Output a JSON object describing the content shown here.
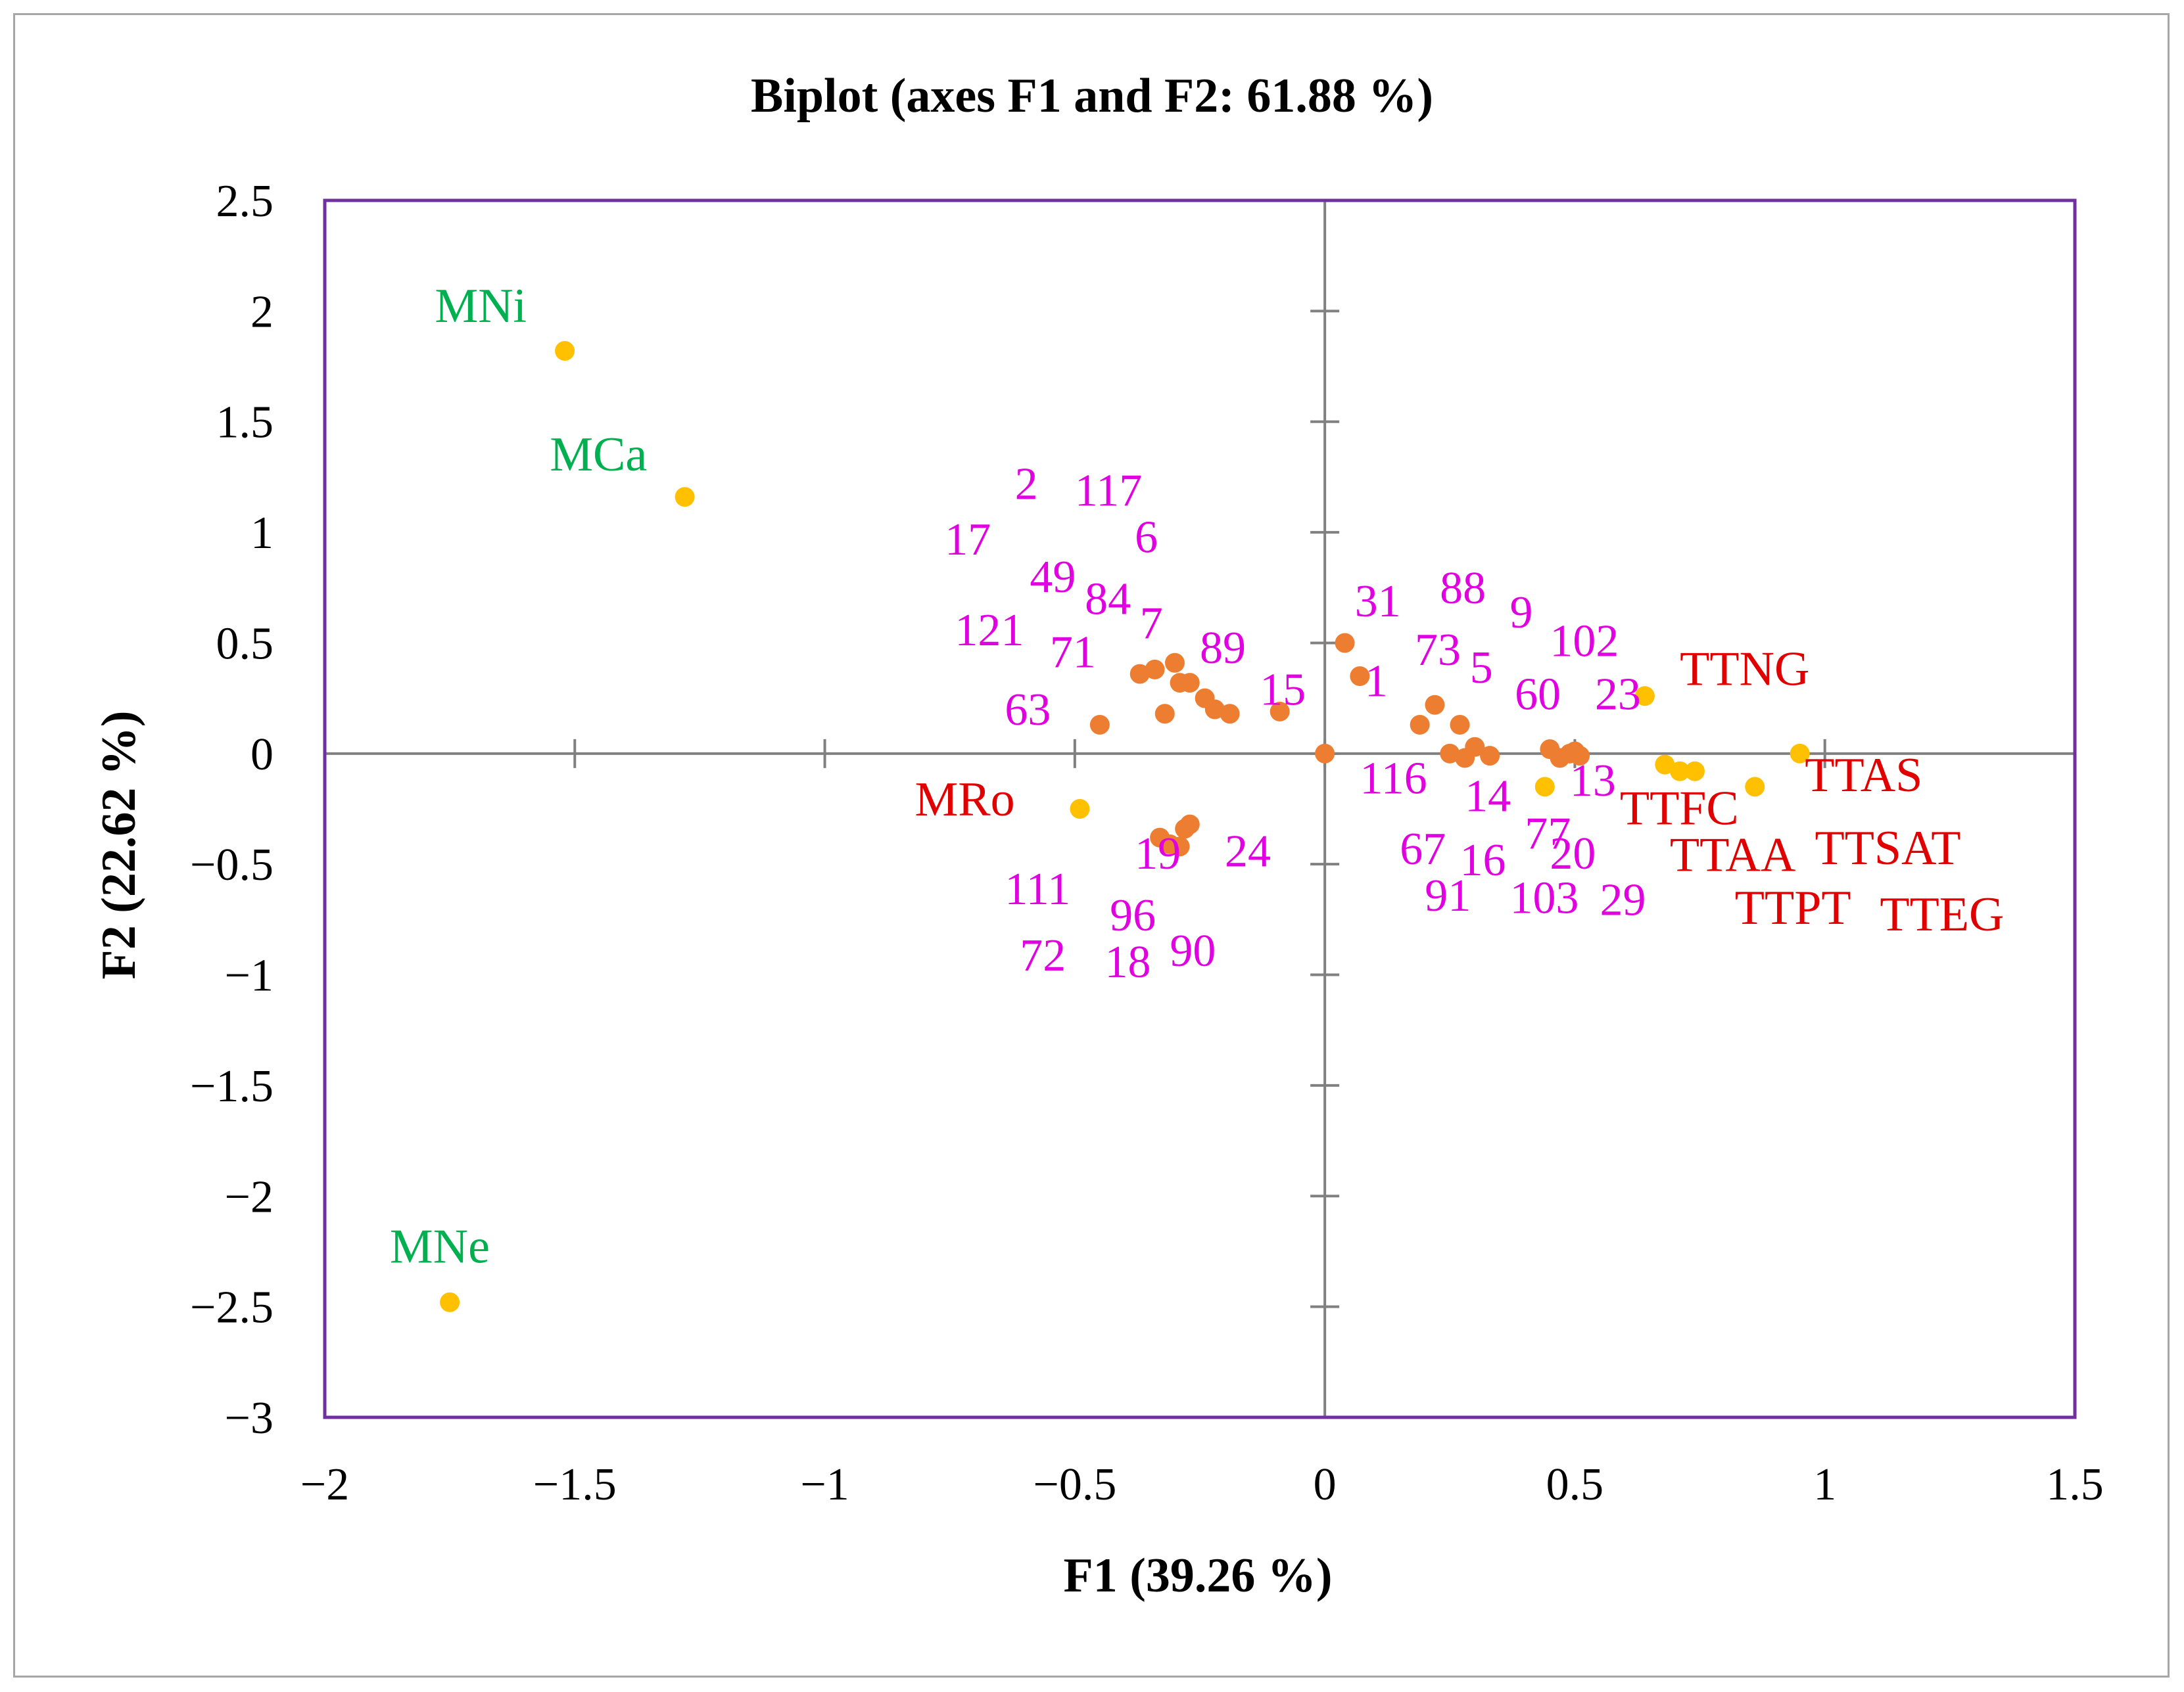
{
  "chart_data": {
    "type": "scatter",
    "title": "Biplot (axes F1 and F2: 61.88 %)",
    "xlabel": "F1 (39.26 %)",
    "ylabel": "F2 (22.62 %)",
    "xlim": [
      -2,
      1.5
    ],
    "ylim": [
      -3,
      2.5
    ],
    "x_ticks": [
      -2,
      -1.5,
      -1,
      -0.5,
      0,
      0.5,
      1,
      1.5
    ],
    "y_ticks": [
      2.5,
      2,
      1.5,
      1,
      0.5,
      0,
      -0.5,
      -1,
      -1.5,
      -2,
      -2.5,
      -3
    ],
    "x_tick_labels": [
      "−2",
      "−1.5",
      "−1",
      "−0.5",
      "0",
      "0.5",
      "1",
      "1.5"
    ],
    "y_tick_labels": [
      "2.5",
      "2",
      "1.5",
      "1",
      "0.5",
      "0",
      "−0.5",
      "−1",
      "−1.5",
      "−2",
      "−2.5",
      "−3"
    ],
    "colors": {
      "frame": "#7030a0",
      "axis": "#808080",
      "observation_point": "#ed7d31",
      "variable_point": "#ffc000",
      "observation_label": "#e000e0",
      "variable_label_green": "#00b050",
      "variable_label_red": "#e00000"
    },
    "variable_points": [
      {
        "name": "MNi",
        "x": -1.52,
        "y": 1.82,
        "color": "green"
      },
      {
        "name": "MCa",
        "x": -1.28,
        "y": 1.16,
        "color": "green"
      },
      {
        "name": "MNe",
        "x": -1.75,
        "y": -2.48,
        "color": "green"
      },
      {
        "name": "MRo",
        "x": -0.49,
        "y": -0.25,
        "color": "red"
      },
      {
        "name": "TTNG",
        "x": 0.64,
        "y": 0.26,
        "color": "red"
      },
      {
        "name": "TTAS",
        "x": 0.95,
        "y": 0.0,
        "color": "red"
      },
      {
        "name": "TTFC",
        "x": 0.68,
        "y": -0.05,
        "color": "red"
      },
      {
        "name": "TTAA",
        "x": 0.71,
        "y": -0.08,
        "color": "red"
      },
      {
        "name": "TTSAT",
        "x": 0.74,
        "y": -0.08,
        "color": "red"
      },
      {
        "name": "TTPT",
        "x": 0.86,
        "y": -0.15,
        "color": "red"
      },
      {
        "name": "TTEG",
        "x": 0.44,
        "y": -0.15,
        "color": "red"
      }
    ],
    "variable_labels": [
      {
        "text": "MNi",
        "x": -1.78,
        "y": 1.95,
        "color": "green"
      },
      {
        "text": "MCa",
        "x": -1.55,
        "y": 1.28,
        "color": "green"
      },
      {
        "text": "MNe",
        "x": -1.87,
        "y": -2.3,
        "color": "green"
      },
      {
        "text": "MRo",
        "x": -0.82,
        "y": -0.28,
        "color": "red"
      },
      {
        "text": "TTNG",
        "x": 0.71,
        "y": 0.31,
        "color": "red"
      },
      {
        "text": "TTAS",
        "x": 0.96,
        "y": -0.17,
        "color": "red"
      },
      {
        "text": "TTFC",
        "x": 0.59,
        "y": -0.32,
        "color": "red"
      },
      {
        "text": "TTAA",
        "x": 0.69,
        "y": -0.53,
        "color": "red"
      },
      {
        "text": "TTSAT",
        "x": 0.98,
        "y": -0.5,
        "color": "red"
      },
      {
        "text": "TTPT",
        "x": 0.82,
        "y": -0.77,
        "color": "red"
      },
      {
        "text": "TTEG",
        "x": 1.11,
        "y": -0.8,
        "color": "red"
      }
    ],
    "observation_points": [
      {
        "x": 0.04,
        "y": 0.5
      },
      {
        "x": 0.07,
        "y": 0.35
      },
      {
        "x": -0.09,
        "y": 0.19
      },
      {
        "x": -0.19,
        "y": 0.18
      },
      {
        "x": -0.22,
        "y": 0.2
      },
      {
        "x": -0.24,
        "y": 0.25
      },
      {
        "x": -0.27,
        "y": 0.32
      },
      {
        "x": -0.29,
        "y": 0.32
      },
      {
        "x": -0.3,
        "y": 0.41
      },
      {
        "x": -0.34,
        "y": 0.38
      },
      {
        "x": -0.37,
        "y": 0.36
      },
      {
        "x": -0.32,
        "y": 0.18
      },
      {
        "x": -0.45,
        "y": 0.13
      },
      {
        "x": 0.0,
        "y": 0.0
      },
      {
        "x": 0.19,
        "y": 0.13
      },
      {
        "x": 0.22,
        "y": 0.22
      },
      {
        "x": 0.27,
        "y": 0.13
      },
      {
        "x": 0.3,
        "y": 0.03
      },
      {
        "x": 0.25,
        "y": 0.0
      },
      {
        "x": 0.28,
        "y": -0.02
      },
      {
        "x": 0.33,
        "y": -0.01
      },
      {
        "x": 0.45,
        "y": 0.02
      },
      {
        "x": 0.47,
        "y": -0.02
      },
      {
        "x": 0.49,
        "y": 0.0
      },
      {
        "x": 0.5,
        "y": 0.01
      },
      {
        "x": 0.51,
        "y": -0.01
      },
      {
        "x": -0.33,
        "y": -0.38
      },
      {
        "x": -0.31,
        "y": -0.41
      },
      {
        "x": -0.29,
        "y": -0.42
      },
      {
        "x": -0.28,
        "y": -0.34
      },
      {
        "x": -0.27,
        "y": -0.32
      }
    ],
    "observation_labels": [
      {
        "text": "2",
        "x": -0.62,
        "y": 1.15
      },
      {
        "text": "117",
        "x": -0.5,
        "y": 1.12
      },
      {
        "text": "17",
        "x": -0.76,
        "y": 0.9
      },
      {
        "text": "6",
        "x": -0.38,
        "y": 0.91
      },
      {
        "text": "49",
        "x": -0.59,
        "y": 0.73
      },
      {
        "text": "84",
        "x": -0.48,
        "y": 0.63
      },
      {
        "text": "121",
        "x": -0.74,
        "y": 0.49
      },
      {
        "text": "7",
        "x": -0.37,
        "y": 0.52
      },
      {
        "text": "71",
        "x": -0.55,
        "y": 0.39
      },
      {
        "text": "89",
        "x": -0.25,
        "y": 0.41
      },
      {
        "text": "63",
        "x": -0.64,
        "y": 0.13
      },
      {
        "text": "15",
        "x": -0.13,
        "y": 0.22
      },
      {
        "text": "31",
        "x": 0.06,
        "y": 0.62
      },
      {
        "text": "88",
        "x": 0.23,
        "y": 0.68
      },
      {
        "text": "9",
        "x": 0.37,
        "y": 0.57
      },
      {
        "text": "102",
        "x": 0.45,
        "y": 0.44
      },
      {
        "text": "73",
        "x": 0.18,
        "y": 0.4
      },
      {
        "text": "5",
        "x": 0.29,
        "y": 0.32
      },
      {
        "text": "1",
        "x": 0.08,
        "y": 0.26
      },
      {
        "text": "60",
        "x": 0.38,
        "y": 0.2
      },
      {
        "text": "23",
        "x": 0.54,
        "y": 0.2
      },
      {
        "text": "116",
        "x": 0.07,
        "y": -0.18
      },
      {
        "text": "14",
        "x": 0.28,
        "y": -0.26
      },
      {
        "text": "13",
        "x": 0.49,
        "y": -0.19
      },
      {
        "text": "77",
        "x": 0.4,
        "y": -0.43
      },
      {
        "text": "67",
        "x": 0.15,
        "y": -0.5
      },
      {
        "text": "16",
        "x": 0.27,
        "y": -0.55
      },
      {
        "text": "20",
        "x": 0.45,
        "y": -0.52
      },
      {
        "text": "91",
        "x": 0.2,
        "y": -0.71
      },
      {
        "text": "103",
        "x": 0.37,
        "y": -0.72
      },
      {
        "text": "29",
        "x": 0.55,
        "y": -0.73
      },
      {
        "text": "19",
        "x": -0.38,
        "y": -0.52
      },
      {
        "text": "24",
        "x": -0.2,
        "y": -0.51
      },
      {
        "text": "111",
        "x": -0.64,
        "y": -0.68
      },
      {
        "text": "96",
        "x": -0.43,
        "y": -0.8
      },
      {
        "text": "72",
        "x": -0.61,
        "y": -0.98
      },
      {
        "text": "18",
        "x": -0.44,
        "y": -1.01
      },
      {
        "text": "90",
        "x": -0.31,
        "y": -0.96
      }
    ]
  }
}
